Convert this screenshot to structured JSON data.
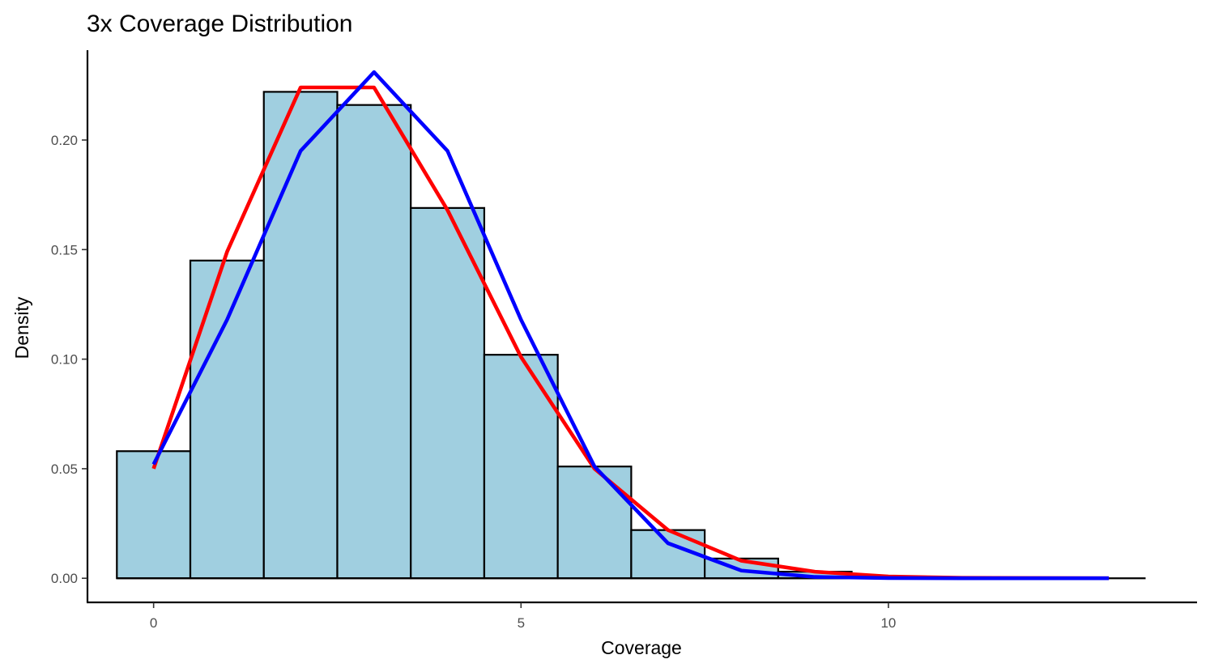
{
  "chart_data": {
    "type": "bar",
    "title": "3x Coverage Distribution",
    "xlabel": "Coverage",
    "ylabel": "Density",
    "xlim": [
      -0.9,
      14.2
    ],
    "ylim": [
      -0.011,
      0.241
    ],
    "x_ticks": [
      0,
      5,
      10
    ],
    "x_tick_labels": [
      "0",
      "5",
      "10"
    ],
    "y_ticks": [
      0,
      0.05,
      0.1,
      0.15,
      0.2
    ],
    "y_tick_labels": [
      "0.00",
      "0.05",
      "0.10",
      "0.15",
      "0.20"
    ],
    "grid": false,
    "legend": "none",
    "histogram": {
      "bin_width": 1,
      "bin_centers": [
        0,
        1,
        2,
        3,
        4,
        5,
        6,
        7,
        8,
        9,
        10,
        11,
        12,
        13
      ],
      "values": [
        0.058,
        0.145,
        0.222,
        0.216,
        0.169,
        0.102,
        0.051,
        0.022,
        0.009,
        0.003,
        0.0004,
        0.0002,
        0.0001,
        0.0
      ],
      "fill": "#a0cfe0",
      "edge": "#000000"
    },
    "series": [
      {
        "color": "#ff0000",
        "x": [
          0,
          1,
          2,
          3,
          4,
          5,
          6,
          7,
          8,
          9,
          10,
          11,
          12,
          13
        ],
        "values": [
          0.05,
          0.149,
          0.224,
          0.224,
          0.168,
          0.101,
          0.05,
          0.022,
          0.008,
          0.003,
          0.0008,
          0.0002,
          0.0001,
          0.0
        ]
      },
      {
        "color": "#0000ff",
        "x": [
          0,
          1,
          2,
          3,
          4,
          5,
          6,
          7,
          8,
          9,
          10,
          11,
          12,
          13
        ],
        "values": [
          0.052,
          0.118,
          0.195,
          0.231,
          0.195,
          0.118,
          0.051,
          0.016,
          0.0035,
          0.0006,
          0.0001,
          0.0,
          0.0,
          0.0
        ]
      }
    ]
  }
}
